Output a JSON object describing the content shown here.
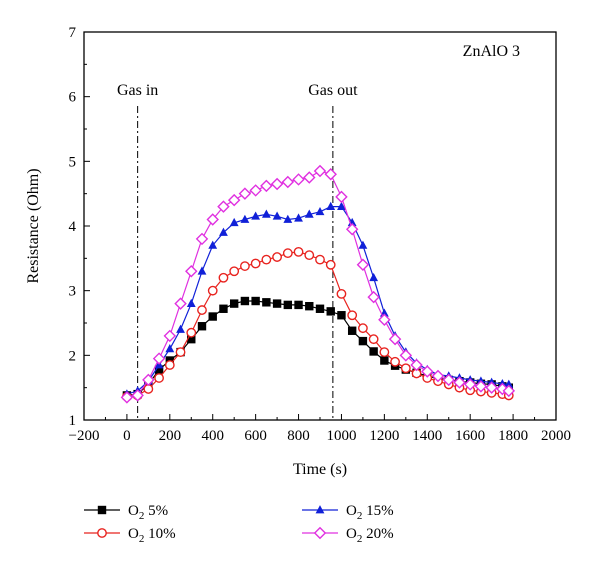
{
  "chart_data": {
    "type": "line",
    "panel_label": "ZnAlO 3",
    "xlabel": "Time (s)",
    "ylabel": "Resistance (Ohm)",
    "xlim": [
      -200,
      2000
    ],
    "ylim": [
      1,
      7
    ],
    "x_ticks": [
      "−200",
      "0",
      "200",
      "400",
      "600",
      "800",
      "1000",
      "1200",
      "1400",
      "1600",
      "1800",
      "2000"
    ],
    "y_ticks": [
      "1",
      "2",
      "3",
      "4",
      "5",
      "6",
      "7"
    ],
    "grid": false,
    "legend_position": "bottom",
    "annotations": [
      {
        "text": "Gas in",
        "x": 50
      },
      {
        "text": "Gas out",
        "x": 960
      }
    ],
    "series": [
      {
        "name": "O2 5%",
        "legend_main": "O",
        "legend_sub": "2",
        "legend_tail": " 5%",
        "color": "#000000",
        "marker": "square",
        "x": [
          0,
          50,
          100,
          150,
          200,
          250,
          300,
          350,
          400,
          450,
          500,
          550,
          600,
          650,
          700,
          750,
          800,
          850,
          900,
          950,
          1000,
          1050,
          1100,
          1150,
          1200,
          1250,
          1300,
          1350,
          1400,
          1450,
          1500,
          1550,
          1600,
          1650,
          1700,
          1750,
          1780
        ],
        "values": [
          1.38,
          1.4,
          1.55,
          1.78,
          1.92,
          2.05,
          2.25,
          2.45,
          2.6,
          2.72,
          2.8,
          2.84,
          2.84,
          2.82,
          2.8,
          2.78,
          2.78,
          2.76,
          2.72,
          2.68,
          2.62,
          2.38,
          2.22,
          2.06,
          1.92,
          1.84,
          1.78,
          1.73,
          1.68,
          1.64,
          1.62,
          1.6,
          1.58,
          1.56,
          1.55,
          1.52,
          1.5
        ]
      },
      {
        "name": "O2 10%",
        "legend_main": "O",
        "legend_sub": "2",
        "legend_tail": " 10%",
        "color": "#e8231f",
        "marker": "circle",
        "x": [
          0,
          50,
          100,
          150,
          200,
          250,
          300,
          350,
          400,
          450,
          500,
          550,
          600,
          650,
          700,
          750,
          800,
          850,
          900,
          950,
          1000,
          1050,
          1100,
          1150,
          1200,
          1250,
          1300,
          1350,
          1400,
          1450,
          1500,
          1550,
          1600,
          1650,
          1700,
          1750,
          1780
        ],
        "values": [
          1.36,
          1.38,
          1.48,
          1.65,
          1.85,
          2.05,
          2.35,
          2.7,
          3.0,
          3.2,
          3.3,
          3.38,
          3.42,
          3.48,
          3.52,
          3.58,
          3.6,
          3.55,
          3.48,
          3.4,
          2.95,
          2.62,
          2.42,
          2.25,
          2.05,
          1.9,
          1.8,
          1.72,
          1.65,
          1.6,
          1.55,
          1.5,
          1.46,
          1.44,
          1.42,
          1.4,
          1.38
        ]
      },
      {
        "name": "O2 15%",
        "legend_main": "O",
        "legend_sub": "2",
        "legend_tail": " 15%",
        "color": "#1020d8",
        "marker": "triangle",
        "x": [
          0,
          50,
          100,
          150,
          200,
          250,
          300,
          350,
          400,
          450,
          500,
          550,
          600,
          650,
          700,
          750,
          800,
          850,
          900,
          950,
          1000,
          1050,
          1100,
          1150,
          1200,
          1250,
          1300,
          1350,
          1400,
          1450,
          1500,
          1550,
          1600,
          1650,
          1700,
          1750,
          1780
        ],
        "values": [
          1.4,
          1.45,
          1.6,
          1.85,
          2.1,
          2.4,
          2.8,
          3.3,
          3.7,
          3.9,
          4.05,
          4.1,
          4.15,
          4.18,
          4.15,
          4.1,
          4.12,
          4.18,
          4.22,
          4.3,
          4.3,
          4.05,
          3.7,
          3.2,
          2.65,
          2.3,
          2.05,
          1.88,
          1.78,
          1.7,
          1.68,
          1.65,
          1.62,
          1.6,
          1.58,
          1.56,
          1.55
        ]
      },
      {
        "name": "O2 20%",
        "legend_main": "O",
        "legend_sub": "2",
        "legend_tail": " 20%",
        "color": "#e030e0",
        "marker": "diamond",
        "x": [
          0,
          50,
          100,
          150,
          200,
          250,
          300,
          350,
          400,
          450,
          500,
          550,
          600,
          650,
          700,
          750,
          800,
          850,
          900,
          950,
          1000,
          1050,
          1100,
          1150,
          1200,
          1250,
          1300,
          1350,
          1400,
          1450,
          1500,
          1550,
          1600,
          1650,
          1700,
          1750,
          1780
        ],
        "values": [
          1.35,
          1.38,
          1.62,
          1.95,
          2.3,
          2.8,
          3.3,
          3.8,
          4.1,
          4.3,
          4.4,
          4.5,
          4.55,
          4.62,
          4.65,
          4.68,
          4.72,
          4.75,
          4.85,
          4.8,
          4.45,
          3.95,
          3.4,
          2.9,
          2.55,
          2.25,
          2.0,
          1.85,
          1.75,
          1.68,
          1.62,
          1.58,
          1.55,
          1.52,
          1.5,
          1.48,
          1.45
        ]
      }
    ]
  }
}
